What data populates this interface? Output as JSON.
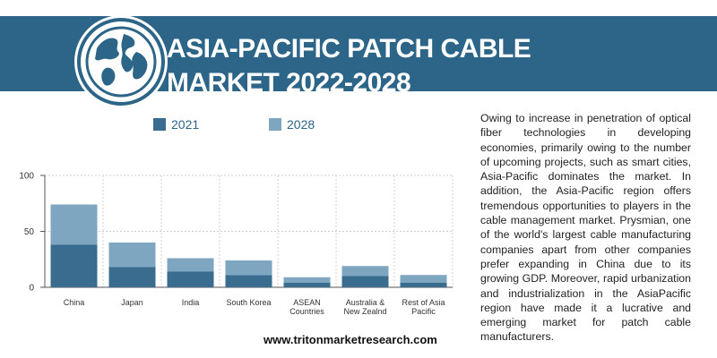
{
  "title": {
    "line1": "ASIA-PACIFIC PATCH CABLE",
    "line2": "MARKET  2022-2028"
  },
  "icon": "globe-icon",
  "colors": {
    "banner": "#2c6587",
    "series_2021": "#3a6c90",
    "series_2028": "#7ea6c0"
  },
  "chart_data": {
    "type": "bar",
    "stacked": true,
    "categories": [
      [
        "China"
      ],
      [
        "Japan"
      ],
      [
        "India"
      ],
      [
        "South Korea"
      ],
      [
        "ASEAN",
        "Countries"
      ],
      [
        "Australia &",
        "New Zealnd"
      ],
      [
        "Rest of Asia",
        "Pacific"
      ]
    ],
    "series": [
      {
        "name": "2021",
        "values": [
          38,
          18,
          14,
          11,
          4,
          10,
          4
        ]
      },
      {
        "name": "2028",
        "values": [
          36,
          22,
          12,
          13,
          5,
          9,
          7
        ]
      }
    ],
    "ylim": [
      0,
      100
    ],
    "yticks": [
      0,
      50,
      100
    ],
    "grid": true,
    "legend": "top"
  },
  "description": "Owing to increase in penetration of optical fiber technologies in developing economies, primarily owing to the number of upcoming projects, such as smart cities, Asia-Pacific dominates the market. In addition, the Asia-Pacific region offers tremendous opportunities to players in the cable management market. Prysmian, one of the world's largest cable manufacturing companies apart from other companies prefer expanding in China due to its growing GDP. Moreover, rapid urbanization and industrialization in the AsiaPacific region have made it a lucrative and emerging market for patch cable manufacturers.",
  "source": "www.tritonmarketresearch.com"
}
